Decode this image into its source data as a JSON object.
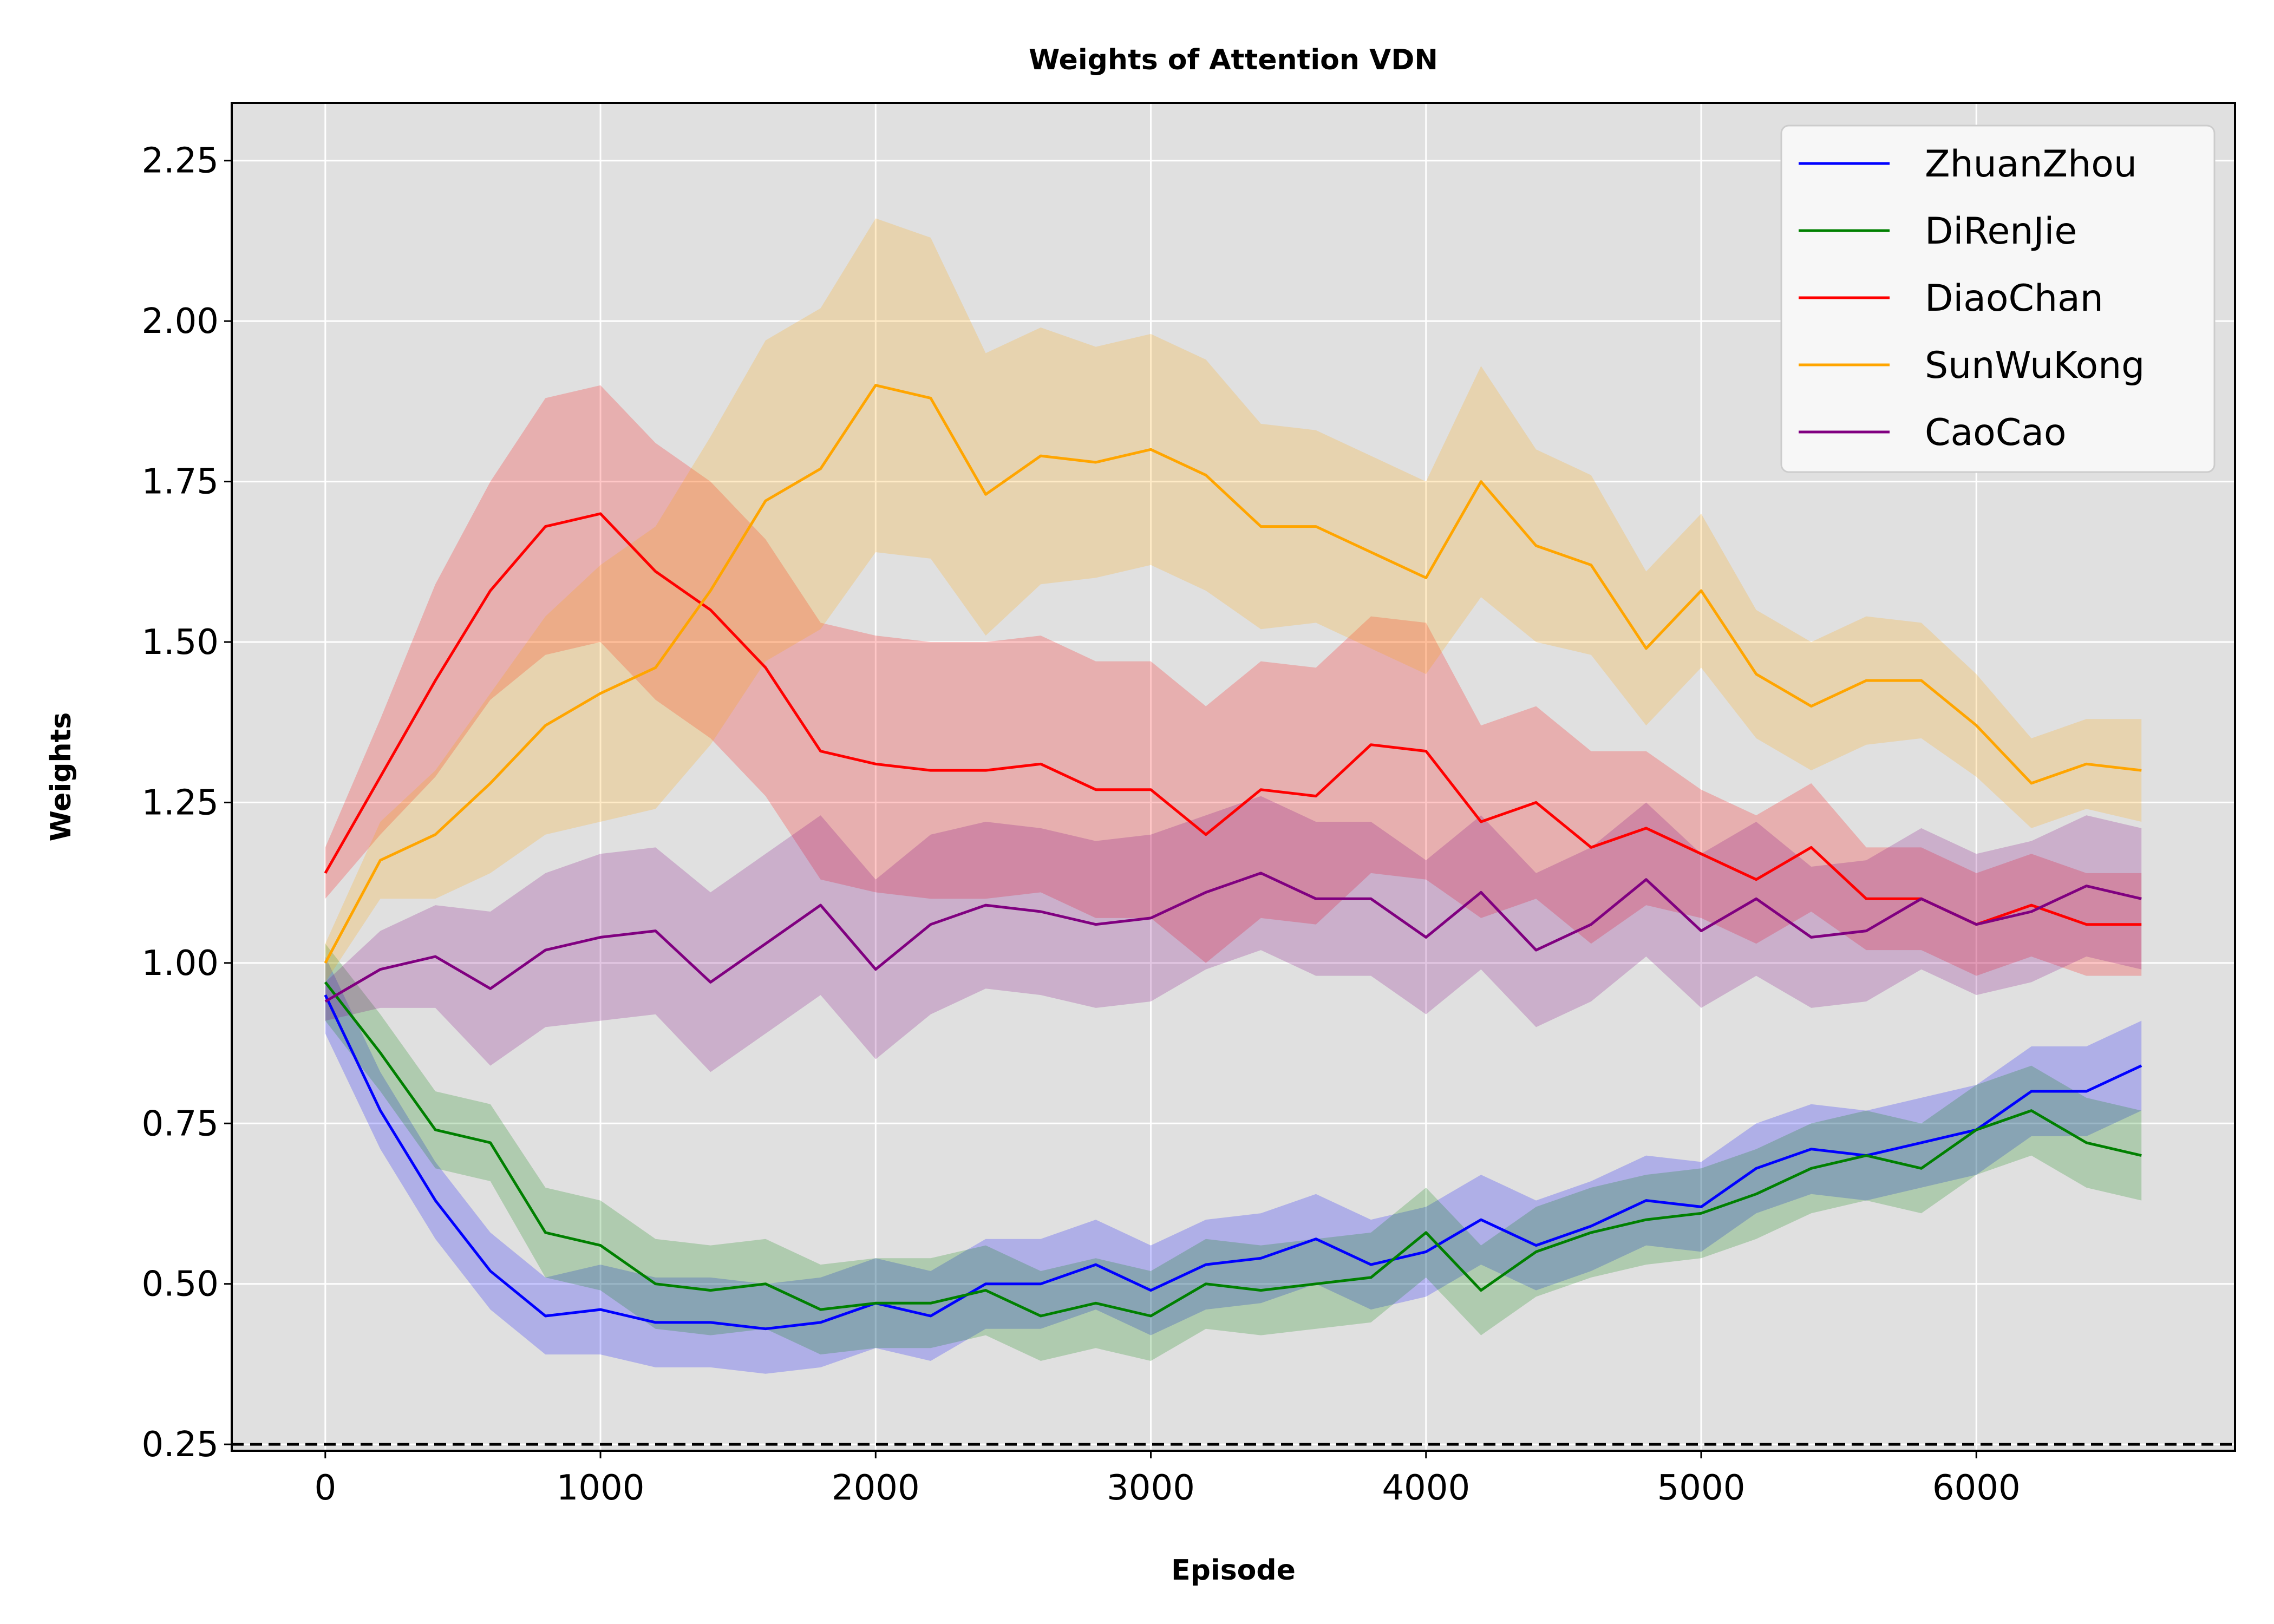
{
  "chart_data": {
    "type": "line",
    "title": "Weights of Attention VDN",
    "xlabel": "Episode",
    "ylabel": "Weights",
    "xlim": [
      -340,
      6940
    ],
    "ylim": [
      0.24,
      2.34
    ],
    "xticks": [
      0,
      1000,
      2000,
      3000,
      4000,
      5000,
      6000
    ],
    "xtick_labels": [
      "0",
      "1000",
      "2000",
      "3000",
      "4000",
      "5000",
      "6000"
    ],
    "yticks": [
      0.25,
      0.5,
      0.75,
      1.0,
      1.25,
      1.5,
      1.75,
      2.0,
      2.25
    ],
    "ytick_labels": [
      "0.25",
      "0.50",
      "0.75",
      "1.00",
      "1.25",
      "1.50",
      "1.75",
      "2.00",
      "2.25"
    ],
    "grid": true,
    "legend_position": "top-right",
    "background": "#e0e0e0",
    "reference_line": {
      "y": 0.25,
      "style": "dashed",
      "color": "#000000"
    },
    "x": [
      0,
      200,
      400,
      600,
      800,
      1000,
      1200,
      1400,
      1600,
      1800,
      2000,
      2200,
      2400,
      2600,
      2800,
      3000,
      3200,
      3400,
      3600,
      3800,
      4000,
      4200,
      4400,
      4600,
      4800,
      5000,
      5200,
      5400,
      5600,
      5800,
      6000,
      6200,
      6400,
      6600
    ],
    "series": [
      {
        "name": "ZhuanZhou",
        "color": "#0000ff",
        "values": [
          0.95,
          0.77,
          0.63,
          0.52,
          0.45,
          0.46,
          0.44,
          0.44,
          0.43,
          0.44,
          0.47,
          0.45,
          0.5,
          0.5,
          0.53,
          0.49,
          0.53,
          0.54,
          0.57,
          0.53,
          0.55,
          0.6,
          0.56,
          0.59,
          0.63,
          0.62,
          0.68,
          0.71,
          0.7,
          0.72,
          0.74,
          0.8,
          0.8,
          0.84
        ],
        "band": [
          0.06,
          0.06,
          0.06,
          0.06,
          0.06,
          0.07,
          0.07,
          0.07,
          0.07,
          0.07,
          0.07,
          0.07,
          0.07,
          0.07,
          0.07,
          0.07,
          0.07,
          0.07,
          0.07,
          0.07,
          0.07,
          0.07,
          0.07,
          0.07,
          0.07,
          0.07,
          0.07,
          0.07,
          0.07,
          0.07,
          0.07,
          0.07,
          0.07,
          0.07
        ]
      },
      {
        "name": "DiRenJie",
        "color": "#008000",
        "values": [
          0.97,
          0.86,
          0.74,
          0.72,
          0.58,
          0.56,
          0.5,
          0.49,
          0.5,
          0.46,
          0.47,
          0.47,
          0.49,
          0.45,
          0.47,
          0.45,
          0.5,
          0.49,
          0.5,
          0.51,
          0.58,
          0.49,
          0.55,
          0.58,
          0.6,
          0.61,
          0.64,
          0.68,
          0.7,
          0.68,
          0.74,
          0.77,
          0.72,
          0.7
        ],
        "band": [
          0.06,
          0.06,
          0.06,
          0.06,
          0.07,
          0.07,
          0.07,
          0.07,
          0.07,
          0.07,
          0.07,
          0.07,
          0.07,
          0.07,
          0.07,
          0.07,
          0.07,
          0.07,
          0.07,
          0.07,
          0.07,
          0.07,
          0.07,
          0.07,
          0.07,
          0.07,
          0.07,
          0.07,
          0.07,
          0.07,
          0.07,
          0.07,
          0.07,
          0.07
        ]
      },
      {
        "name": "DiaoChan",
        "color": "#ff0000",
        "values": [
          1.14,
          1.29,
          1.44,
          1.58,
          1.68,
          1.7,
          1.61,
          1.55,
          1.46,
          1.33,
          1.31,
          1.3,
          1.3,
          1.31,
          1.27,
          1.27,
          1.2,
          1.27,
          1.26,
          1.34,
          1.33,
          1.22,
          1.25,
          1.18,
          1.21,
          1.17,
          1.13,
          1.18,
          1.1,
          1.1,
          1.06,
          1.09,
          1.06,
          1.06
        ],
        "band": [
          0.04,
          0.09,
          0.15,
          0.17,
          0.2,
          0.2,
          0.2,
          0.2,
          0.2,
          0.2,
          0.2,
          0.2,
          0.2,
          0.2,
          0.2,
          0.2,
          0.2,
          0.2,
          0.2,
          0.2,
          0.2,
          0.15,
          0.15,
          0.15,
          0.12,
          0.1,
          0.1,
          0.1,
          0.08,
          0.08,
          0.08,
          0.08,
          0.08,
          0.08
        ]
      },
      {
        "name": "SunWuKong",
        "color": "#ffa500",
        "values": [
          1.0,
          1.16,
          1.2,
          1.28,
          1.37,
          1.42,
          1.46,
          1.58,
          1.72,
          1.77,
          1.9,
          1.88,
          1.73,
          1.79,
          1.78,
          1.8,
          1.76,
          1.68,
          1.68,
          1.64,
          1.6,
          1.75,
          1.65,
          1.62,
          1.49,
          1.58,
          1.45,
          1.4,
          1.44,
          1.44,
          1.37,
          1.28,
          1.31,
          1.3
        ],
        "band": [
          0.03,
          0.06,
          0.1,
          0.14,
          0.17,
          0.2,
          0.22,
          0.24,
          0.25,
          0.25,
          0.26,
          0.25,
          0.22,
          0.2,
          0.18,
          0.18,
          0.18,
          0.16,
          0.15,
          0.15,
          0.15,
          0.18,
          0.15,
          0.14,
          0.12,
          0.12,
          0.1,
          0.1,
          0.1,
          0.09,
          0.08,
          0.07,
          0.07,
          0.08
        ]
      },
      {
        "name": "CaoCao",
        "color": "#800080",
        "values": [
          0.94,
          0.99,
          1.01,
          0.96,
          1.02,
          1.04,
          1.05,
          0.97,
          1.03,
          1.09,
          0.99,
          1.06,
          1.09,
          1.08,
          1.06,
          1.07,
          1.11,
          1.14,
          1.1,
          1.1,
          1.04,
          1.11,
          1.02,
          1.06,
          1.13,
          1.05,
          1.1,
          1.04,
          1.05,
          1.1,
          1.06,
          1.08,
          1.12,
          1.1
        ],
        "band": [
          0.03,
          0.06,
          0.08,
          0.12,
          0.12,
          0.13,
          0.13,
          0.14,
          0.14,
          0.14,
          0.14,
          0.14,
          0.13,
          0.13,
          0.13,
          0.13,
          0.12,
          0.12,
          0.12,
          0.12,
          0.12,
          0.12,
          0.12,
          0.12,
          0.12,
          0.12,
          0.12,
          0.11,
          0.11,
          0.11,
          0.11,
          0.11,
          0.11,
          0.11
        ]
      }
    ]
  }
}
